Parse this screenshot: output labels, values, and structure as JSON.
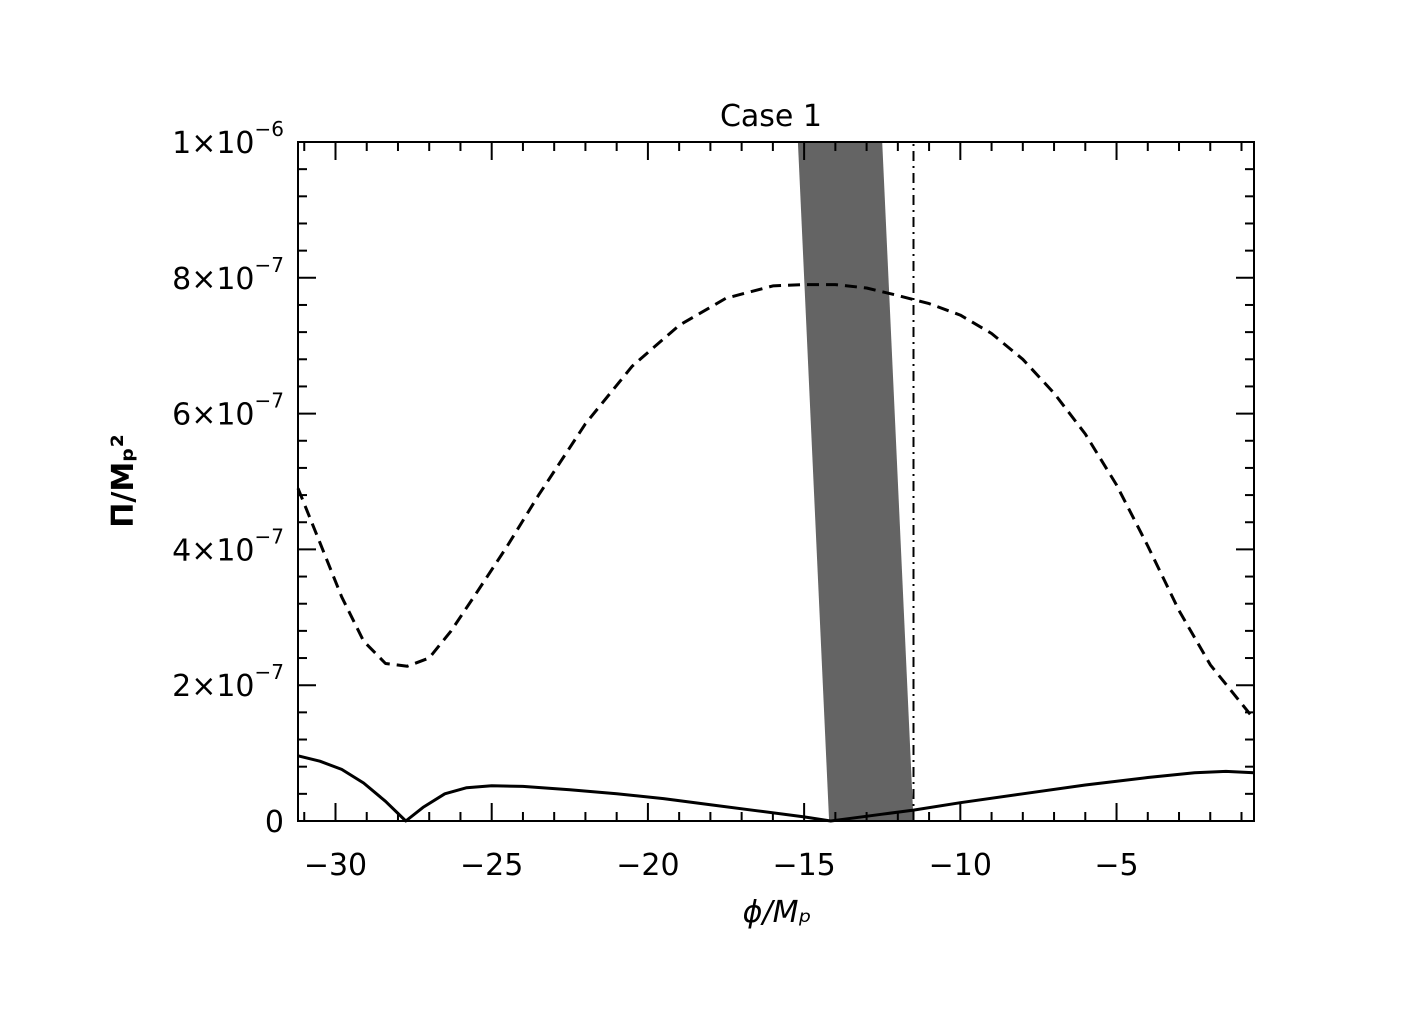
{
  "chart_data": {
    "type": "line",
    "title": "Case 1",
    "xlabel": "ϕ/Mₚ",
    "ylabel": "Π/Mₚ²",
    "xlim": [
      -31.2,
      -0.6
    ],
    "ylim": [
      0,
      1e-06
    ],
    "grid": false,
    "x_ticks": [
      {
        "value": -30,
        "label": "−30"
      },
      {
        "value": -25,
        "label": "−25"
      },
      {
        "value": -20,
        "label": "−20"
      },
      {
        "value": -15,
        "label": "−15"
      },
      {
        "value": -10,
        "label": "−10"
      },
      {
        "value": -5,
        "label": "−5"
      }
    ],
    "y_ticks": [
      {
        "value": 0,
        "base": "0",
        "exp": ""
      },
      {
        "value": 2e-07,
        "base": "2×10",
        "exp": "−7"
      },
      {
        "value": 4e-07,
        "base": "4×10",
        "exp": "−7"
      },
      {
        "value": 6e-07,
        "base": "6×10",
        "exp": "−7"
      },
      {
        "value": 8e-07,
        "base": "8×10",
        "exp": "−7"
      },
      {
        "value": 1e-06,
        "base": "1×10",
        "exp": "−6"
      }
    ],
    "series": [
      {
        "style": "dashed",
        "color": "#000000",
        "x": [
          -31.2,
          -30.5,
          -29.8,
          -29.1,
          -28.4,
          -27.7,
          -27.0,
          -26.3,
          -25.5,
          -24.5,
          -23.5,
          -22.0,
          -20.5,
          -19.0,
          -17.5,
          -16.0,
          -15.0,
          -14.0,
          -13.0,
          -12.0,
          -11.0,
          -10.0,
          -9.0,
          -8.0,
          -7.0,
          -6.0,
          -5.0,
          -4.0,
          -3.0,
          -2.0,
          -0.6
        ],
        "y": [
          4.9e-07,
          4.1e-07,
          3.3e-07,
          2.65e-07,
          2.32e-07,
          2.28e-07,
          2.4e-07,
          2.8e-07,
          3.35e-07,
          4.05e-07,
          4.8e-07,
          5.85e-07,
          6.7e-07,
          7.3e-07,
          7.7e-07,
          7.88e-07,
          7.9e-07,
          7.9e-07,
          7.85e-07,
          7.74e-07,
          7.62e-07,
          7.45e-07,
          7.18e-07,
          6.8e-07,
          6.3e-07,
          5.7e-07,
          4.95e-07,
          4.05e-07,
          3.1e-07,
          2.3e-07,
          1.5e-07
        ]
      },
      {
        "style": "solid",
        "color": "#000000",
        "x": [
          -31.2,
          -30.5,
          -29.8,
          -29.1,
          -28.4,
          -27.75,
          -27.2,
          -26.5,
          -25.8,
          -25.0,
          -24.0,
          -22.5,
          -21.0,
          -19.5,
          -18.0,
          -16.5,
          -15.0,
          -14.15,
          -13.5,
          -12.5,
          -11.5,
          -10.0,
          -8.0,
          -6.0,
          -4.0,
          -2.5,
          -1.5,
          -0.6
        ],
        "y": [
          9.6e-08,
          8.8e-08,
          7.6e-08,
          5.6e-08,
          2.9e-08,
          0,
          2e-08,
          4e-08,
          4.9e-08,
          5.2e-08,
          5.1e-08,
          4.6e-08,
          4e-08,
          3.3e-08,
          2.4e-08,
          1.5e-08,
          6e-09,
          0,
          4e-09,
          1e-08,
          1.6e-08,
          2.7e-08,
          4e-08,
          5.3e-08,
          6.4e-08,
          7.1e-08,
          7.3e-08,
          7.1e-08
        ]
      },
      {
        "style": "dash-dot",
        "color": "#000000",
        "x": [
          -11.5,
          -11.5
        ],
        "y": [
          0,
          1e-06
        ]
      }
    ],
    "band": {
      "color": "#646464",
      "polygon": [
        [
          -15.2,
          1e-06
        ],
        [
          -12.5,
          1e-06
        ],
        [
          -11.5,
          0
        ],
        [
          -14.2,
          0
        ]
      ]
    }
  }
}
